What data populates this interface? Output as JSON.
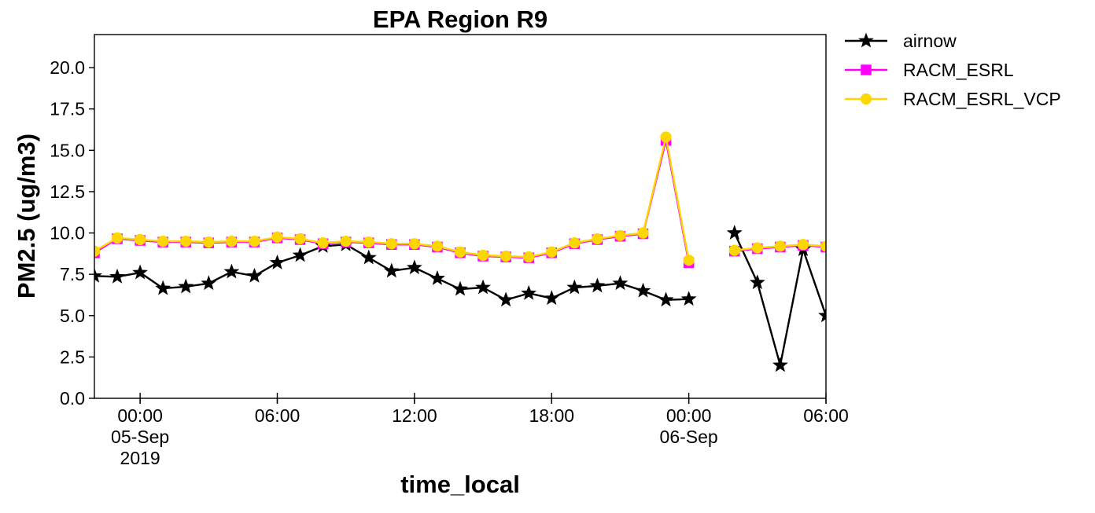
{
  "chart_data": {
    "type": "line",
    "title": "EPA Region R9",
    "xlabel": "time_local",
    "ylabel": "PM2.5 (ug/m3)",
    "xlim": [
      "2019-09-04 22:00",
      "2019-09-06 06:00"
    ],
    "ylim": [
      0,
      22
    ],
    "x_ticks": [
      {
        "value": "2019-09-05 00:00",
        "lines": [
          "00:00",
          "05-Sep",
          "2019"
        ]
      },
      {
        "value": "2019-09-05 06:00",
        "lines": [
          "06:00"
        ]
      },
      {
        "value": "2019-09-05 12:00",
        "lines": [
          "12:00"
        ]
      },
      {
        "value": "2019-09-05 18:00",
        "lines": [
          "18:00"
        ]
      },
      {
        "value": "2019-09-06 00:00",
        "lines": [
          "00:00",
          "06-Sep"
        ]
      },
      {
        "value": "2019-09-06 06:00",
        "lines": [
          "06:00"
        ]
      }
    ],
    "y_ticks": [
      "0.0",
      "2.5",
      "5.0",
      "7.5",
      "10.0",
      "12.5",
      "15.0",
      "17.5",
      "20.0"
    ],
    "grid": false,
    "legend": "outside top-right",
    "series": [
      {
        "name": "airnow",
        "color": "#000000",
        "marker": "star",
        "x": [
          "2019-09-04 22:00",
          "2019-09-04 23:00",
          "2019-09-05 00:00",
          "2019-09-05 01:00",
          "2019-09-05 02:00",
          "2019-09-05 03:00",
          "2019-09-05 04:00",
          "2019-09-05 05:00",
          "2019-09-05 06:00",
          "2019-09-05 07:00",
          "2019-09-05 08:00",
          "2019-09-05 09:00",
          "2019-09-05 10:00",
          "2019-09-05 11:00",
          "2019-09-05 12:00",
          "2019-09-05 13:00",
          "2019-09-05 14:00",
          "2019-09-05 15:00",
          "2019-09-05 16:00",
          "2019-09-05 17:00",
          "2019-09-05 18:00",
          "2019-09-05 19:00",
          "2019-09-05 20:00",
          "2019-09-05 21:00",
          "2019-09-05 22:00",
          "2019-09-05 23:00",
          "2019-09-06 00:00",
          "2019-09-06 01:00",
          "2019-09-06 02:00",
          "2019-09-06 03:00",
          "2019-09-06 04:00",
          "2019-09-06 05:00",
          "2019-09-06 06:00"
        ],
        "values": [
          7.4,
          7.35,
          7.6,
          6.65,
          6.75,
          6.95,
          7.65,
          7.4,
          8.2,
          8.65,
          9.2,
          9.3,
          8.5,
          7.7,
          7.9,
          7.25,
          6.6,
          6.7,
          5.95,
          6.35,
          6.05,
          6.7,
          6.8,
          6.95,
          6.5,
          5.95,
          6.0,
          null,
          10.0,
          7.0,
          2.0,
          9.0,
          5.0
        ]
      },
      {
        "name": "RACM_ESRL",
        "color": "#ff00ff",
        "marker": "square",
        "x": [
          "2019-09-04 22:00",
          "2019-09-04 23:00",
          "2019-09-05 00:00",
          "2019-09-05 01:00",
          "2019-09-05 02:00",
          "2019-09-05 03:00",
          "2019-09-05 04:00",
          "2019-09-05 05:00",
          "2019-09-05 06:00",
          "2019-09-05 07:00",
          "2019-09-05 08:00",
          "2019-09-05 09:00",
          "2019-09-05 10:00",
          "2019-09-05 11:00",
          "2019-09-05 12:00",
          "2019-09-05 13:00",
          "2019-09-05 14:00",
          "2019-09-05 15:00",
          "2019-09-05 16:00",
          "2019-09-05 17:00",
          "2019-09-05 18:00",
          "2019-09-05 19:00",
          "2019-09-05 20:00",
          "2019-09-05 21:00",
          "2019-09-05 22:00",
          "2019-09-05 23:00",
          "2019-09-06 00:00",
          "2019-09-06 01:00",
          "2019-09-06 02:00",
          "2019-09-06 03:00",
          "2019-09-06 04:00",
          "2019-09-06 05:00",
          "2019-09-06 06:00"
        ],
        "values": [
          8.8,
          9.65,
          9.55,
          9.45,
          9.45,
          9.4,
          9.45,
          9.45,
          9.7,
          9.6,
          9.35,
          9.45,
          9.4,
          9.3,
          9.3,
          9.15,
          8.8,
          8.6,
          8.55,
          8.5,
          8.8,
          9.35,
          9.6,
          9.8,
          9.95,
          15.6,
          8.2,
          null,
          8.9,
          9.05,
          9.15,
          9.25,
          9.15
        ]
      },
      {
        "name": "RACM_ESRL_VCP",
        "color": "#ffd700",
        "marker": "circle",
        "x": [
          "2019-09-04 22:00",
          "2019-09-04 23:00",
          "2019-09-05 00:00",
          "2019-09-05 01:00",
          "2019-09-05 02:00",
          "2019-09-05 03:00",
          "2019-09-05 04:00",
          "2019-09-05 05:00",
          "2019-09-05 06:00",
          "2019-09-05 07:00",
          "2019-09-05 08:00",
          "2019-09-05 09:00",
          "2019-09-05 10:00",
          "2019-09-05 11:00",
          "2019-09-05 12:00",
          "2019-09-05 13:00",
          "2019-09-05 14:00",
          "2019-09-05 15:00",
          "2019-09-05 16:00",
          "2019-09-05 17:00",
          "2019-09-05 18:00",
          "2019-09-05 19:00",
          "2019-09-05 20:00",
          "2019-09-05 21:00",
          "2019-09-05 22:00",
          "2019-09-05 23:00",
          "2019-09-06 00:00",
          "2019-09-06 01:00",
          "2019-09-06 02:00",
          "2019-09-06 03:00",
          "2019-09-06 04:00",
          "2019-09-06 05:00",
          "2019-09-06 06:00"
        ],
        "values": [
          8.9,
          9.7,
          9.6,
          9.5,
          9.5,
          9.45,
          9.5,
          9.5,
          9.75,
          9.65,
          9.4,
          9.5,
          9.45,
          9.35,
          9.35,
          9.2,
          8.85,
          8.65,
          8.6,
          8.55,
          8.85,
          9.4,
          9.65,
          9.85,
          10.0,
          15.8,
          8.35,
          null,
          8.95,
          9.1,
          9.2,
          9.3,
          9.2
        ]
      }
    ]
  }
}
